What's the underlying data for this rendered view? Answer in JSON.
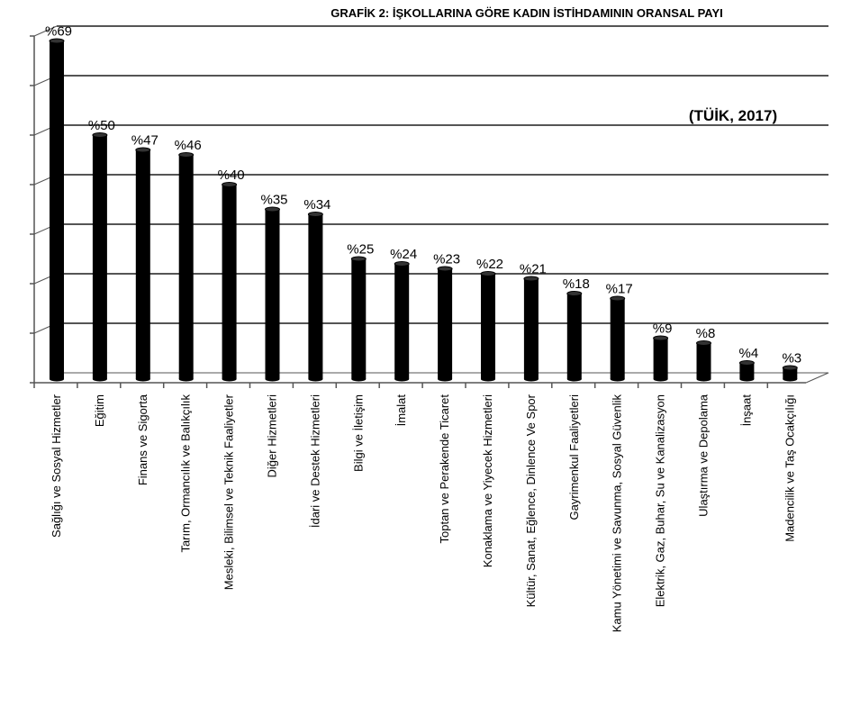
{
  "chart_data": {
    "type": "bar",
    "title": "GRAFİK 2: İŞKOLLARINA GÖRE KADIN İSTİHDAMININ ORANSAL PAYI",
    "source_note": "(TÜİK, 2017)",
    "categories": [
      "Sağlığı ve Sosyal Hizmetler",
      "Eğitim",
      "Finans ve Sigorta",
      "Tarım, Ormancılık ve Balıkçılık",
      "Mesleki, Bilimsel ve Teknik Faaliyetler",
      "Diğer Hizmetleri",
      "İdari ve Destek Hizmetleri",
      "Bilgi ve İletişim",
      "İmalat",
      "Toptan ve Perakende Ticaret",
      "Konaklama ve Yiyecek Hizmetleri",
      "Kültür, Sanat, Eğlence, Dinlence Ve Spor",
      "Gayrimenkul Faaliyetleri",
      "Kamu Yönetimi ve Savunma, Sosyal Güvenlik",
      "Elektrik, Gaz, Buhar, Su ve Kanalizasyon",
      "Ulaştırma ve Depolama",
      "İnşaat",
      "Madencilik ve Taş Ocakçılığı"
    ],
    "values": [
      69,
      50,
      47,
      46,
      40,
      35,
      34,
      25,
      24,
      23,
      22,
      21,
      18,
      17,
      9,
      8,
      4,
      3
    ],
    "data_labels": [
      "%69",
      "%50",
      "%47",
      "%46",
      "%40",
      "%35",
      "%34",
      "%25",
      "%24",
      "%23",
      "%22",
      "%21",
      "%18",
      "%17",
      "%9",
      "%8",
      "%4",
      "%3"
    ],
    "ylim": [
      0,
      70
    ],
    "grid": true,
    "bar_color": "#000000",
    "grid_color": "#555555"
  }
}
